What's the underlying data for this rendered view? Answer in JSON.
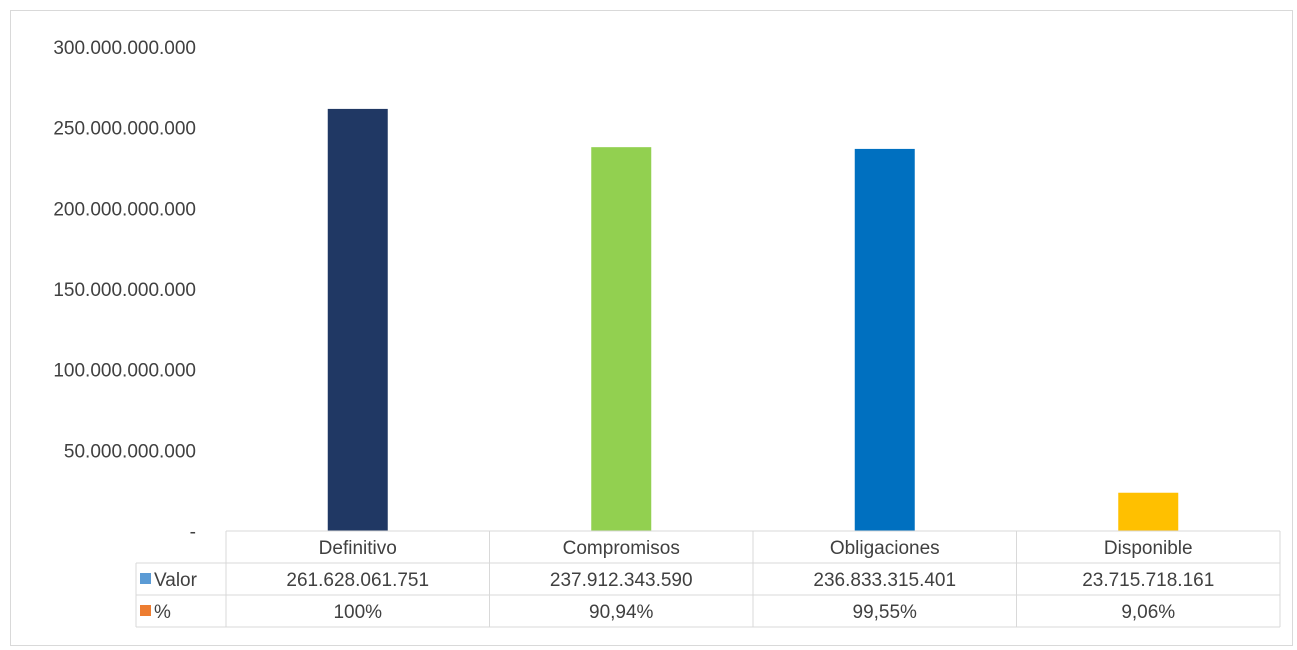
{
  "chart_data": {
    "type": "bar",
    "title": "",
    "xlabel": "",
    "ylabel": "",
    "categories": [
      "Definitivo",
      "Compromisos",
      "Obligaciones",
      "Disponible"
    ],
    "values": [
      261628061751,
      237912343590,
      236833315401,
      23715718161
    ],
    "bar_colors": [
      "#203864",
      "#92d050",
      "#0070c0",
      "#ffc000"
    ],
    "ylim": [
      0,
      300000000000
    ],
    "y_ticks": [
      {
        "value": 0,
        "label": "-"
      },
      {
        "value": 50000000000,
        "label": "50.000.000.000"
      },
      {
        "value": 100000000000,
        "label": "100.000.000.000"
      },
      {
        "value": 150000000000,
        "label": "150.000.000.000"
      },
      {
        "value": 200000000000,
        "label": "200.000.000.000"
      },
      {
        "value": 250000000000,
        "label": "250.000.000.000"
      },
      {
        "value": 300000000000,
        "label": "300.000.000.000"
      }
    ],
    "grid": false,
    "data_table": {
      "rows": [
        {
          "label": "Valor",
          "key_color": "#5b9bd5",
          "cells": [
            "261.628.061.751",
            "237.912.343.590",
            "236.833.315.401",
            "23.715.718.161"
          ]
        },
        {
          "label": "%",
          "key_color": "#ed7d31",
          "cells": [
            "100%",
            "90,94%",
            "99,55%",
            "9,06%"
          ]
        }
      ]
    }
  }
}
